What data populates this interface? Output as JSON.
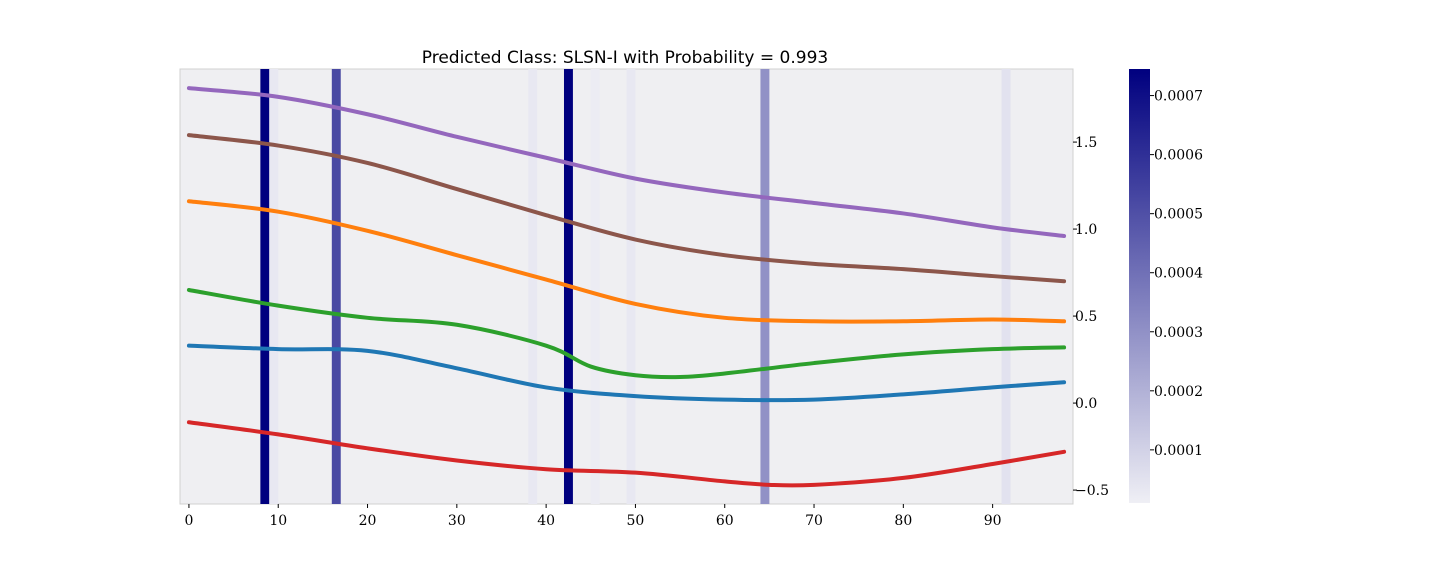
{
  "chart_data": {
    "type": "line",
    "title": "Predicted Class: SLSN-I with Probability = 0.993",
    "xlim": [
      -1,
      99
    ],
    "ylim": [
      -0.58,
      1.92
    ],
    "xticks": [
      "0",
      "10",
      "20",
      "30",
      "40",
      "50",
      "60",
      "70",
      "80",
      "90"
    ],
    "xtick_values": [
      0,
      10,
      20,
      30,
      40,
      50,
      60,
      70,
      80,
      90
    ],
    "yticks": [
      "−0.5",
      "0.0",
      "0.5",
      "1.0",
      "1.5"
    ],
    "ytick_values": [
      -0.5,
      0.0,
      0.5,
      1.0,
      1.5
    ],
    "yaxis_side": "right",
    "grid": false,
    "background_color": "#efeff2",
    "colorbar": {
      "ticks": [
        "0.0001",
        "0.0002",
        "0.0003",
        "0.0004",
        "0.0005",
        "0.0006",
        "0.0007"
      ],
      "tick_values": [
        0.0001,
        0.0002,
        0.0003,
        0.0004,
        0.0005,
        0.0006,
        0.0007
      ],
      "range": [
        1e-05,
        0.000745
      ],
      "color_low": "#efeff5",
      "color_high": "#00007f"
    },
    "attention_bands": [
      {
        "x": 8.5,
        "weight": 0.000745
      },
      {
        "x": 9.5,
        "weight": 3e-05
      },
      {
        "x": 16.5,
        "weight": 0.00052
      },
      {
        "x": 38.5,
        "weight": 3e-05
      },
      {
        "x": 42.5,
        "weight": 0.000745
      },
      {
        "x": 45.5,
        "weight": 2e-05
      },
      {
        "x": 49.5,
        "weight": 3e-05
      },
      {
        "x": 64.5,
        "weight": 0.0003
      },
      {
        "x": 91.5,
        "weight": 5e-05
      }
    ],
    "series": [
      {
        "color": "#9467bd",
        "x": [
          0,
          10,
          20,
          30,
          40,
          50,
          60,
          70,
          80,
          90,
          98
        ],
        "values": [
          1.81,
          1.76,
          1.66,
          1.53,
          1.41,
          1.29,
          1.21,
          1.15,
          1.09,
          1.01,
          0.96
        ]
      },
      {
        "color": "#8c564b",
        "x": [
          0,
          10,
          20,
          30,
          40,
          50,
          60,
          70,
          80,
          90,
          98
        ],
        "values": [
          1.54,
          1.48,
          1.38,
          1.23,
          1.08,
          0.94,
          0.85,
          0.8,
          0.77,
          0.73,
          0.7
        ]
      },
      {
        "color": "#ff7f0e",
        "x": [
          0,
          10,
          20,
          30,
          40,
          50,
          60,
          70,
          80,
          90,
          98
        ],
        "values": [
          1.16,
          1.1,
          0.99,
          0.85,
          0.71,
          0.57,
          0.49,
          0.47,
          0.47,
          0.48,
          0.47
        ]
      },
      {
        "color": "#2ca02c",
        "x": [
          0,
          10,
          20,
          30,
          40,
          45,
          50,
          55,
          60,
          70,
          80,
          90,
          98
        ],
        "values": [
          0.65,
          0.56,
          0.49,
          0.45,
          0.33,
          0.21,
          0.16,
          0.15,
          0.17,
          0.23,
          0.28,
          0.31,
          0.32
        ]
      },
      {
        "color": "#1f77b4",
        "x": [
          0,
          10,
          20,
          30,
          40,
          50,
          60,
          70,
          80,
          90,
          98
        ],
        "values": [
          0.33,
          0.31,
          0.3,
          0.2,
          0.09,
          0.04,
          0.02,
          0.02,
          0.05,
          0.09,
          0.12
        ]
      },
      {
        "color": "#d62728",
        "x": [
          0,
          10,
          20,
          30,
          40,
          50,
          60,
          65,
          70,
          80,
          90,
          98
        ],
        "values": [
          -0.11,
          -0.18,
          -0.26,
          -0.33,
          -0.38,
          -0.4,
          -0.45,
          -0.47,
          -0.47,
          -0.43,
          -0.35,
          -0.28
        ]
      }
    ]
  }
}
